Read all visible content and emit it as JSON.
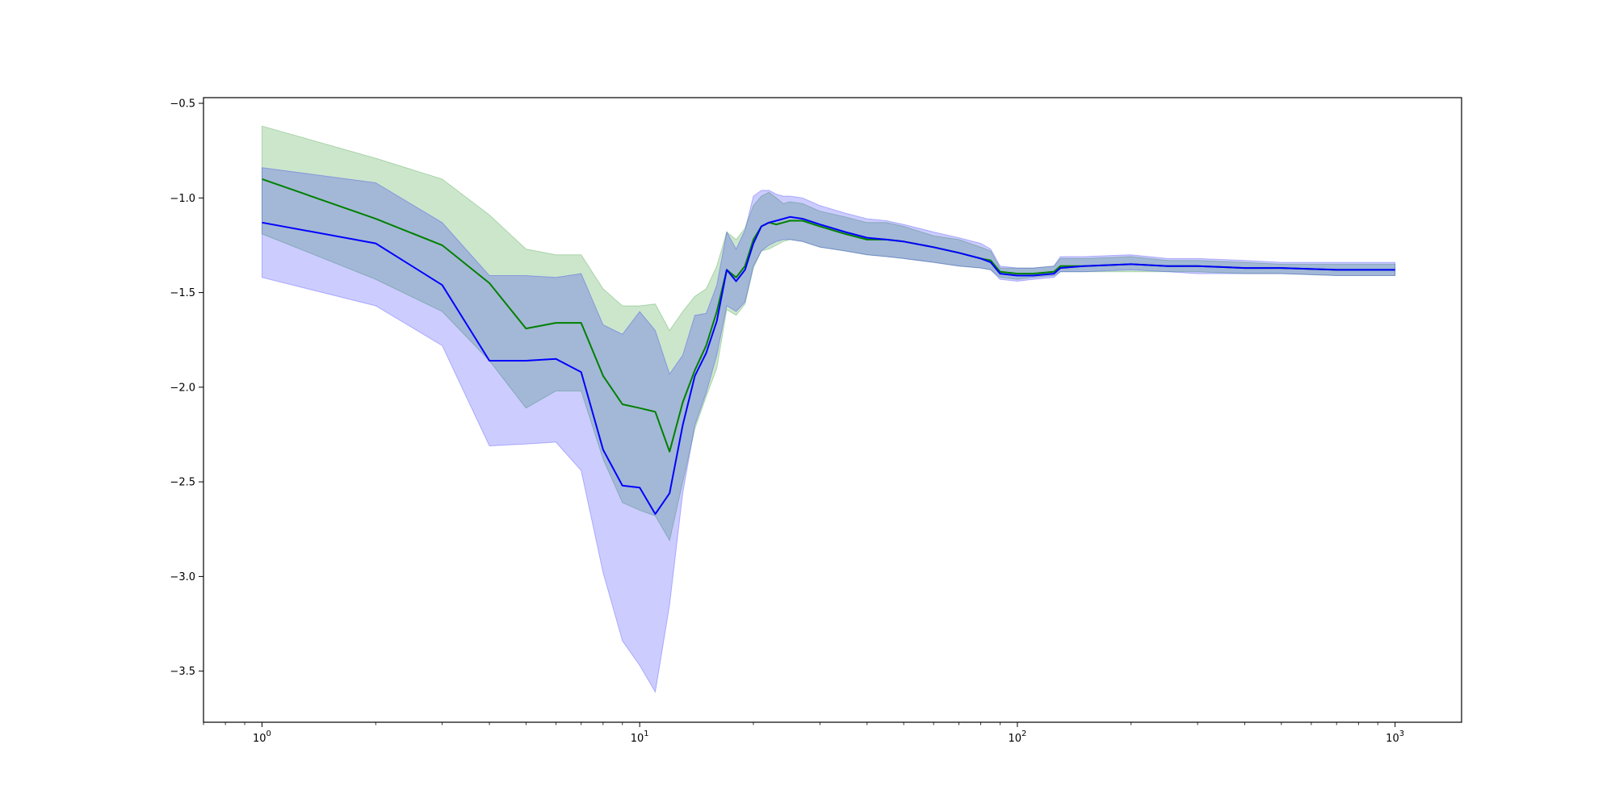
{
  "chart_data": {
    "type": "line",
    "title": "",
    "xlabel": "",
    "ylabel": "",
    "xscale": "log",
    "xlim": [
      0.7,
      1500
    ],
    "ylim": [
      -3.77,
      -0.47
    ],
    "grid": false,
    "legend": "none",
    "x_ticks": [
      {
        "value": 1,
        "base": "10",
        "exp": "0"
      },
      {
        "value": 10,
        "base": "10",
        "exp": "1"
      },
      {
        "value": 100,
        "base": "10",
        "exp": "2"
      },
      {
        "value": 1000,
        "base": "10",
        "exp": "3"
      }
    ],
    "y_ticks": [
      {
        "value": -0.5,
        "label": "−0.5"
      },
      {
        "value": -1.0,
        "label": "−1.0"
      },
      {
        "value": -1.5,
        "label": "−1.5"
      },
      {
        "value": -2.0,
        "label": "−2.0"
      },
      {
        "value": -2.5,
        "label": "−2.5"
      },
      {
        "value": -3.0,
        "label": "−3.0"
      },
      {
        "value": -3.5,
        "label": "−3.5"
      }
    ],
    "series": [
      {
        "color": "#008000",
        "band_color": "#008000",
        "x": [
          1,
          2,
          3,
          4,
          5,
          6,
          7,
          8,
          9,
          10,
          11,
          12,
          13,
          14,
          15,
          16,
          17,
          18,
          19,
          20,
          21,
          22,
          23,
          24,
          25,
          27,
          30,
          35,
          40,
          45,
          50,
          60,
          70,
          80,
          85,
          90,
          100,
          110,
          125,
          130,
          150,
          200,
          250,
          300,
          400,
          500,
          700,
          1000
        ],
        "y": [
          -0.9,
          -1.11,
          -1.25,
          -1.45,
          -1.69,
          -1.66,
          -1.66,
          -1.94,
          -2.09,
          -2.11,
          -2.13,
          -2.34,
          -2.08,
          -1.91,
          -1.78,
          -1.6,
          -1.38,
          -1.42,
          -1.36,
          -1.22,
          -1.15,
          -1.13,
          -1.14,
          -1.13,
          -1.12,
          -1.12,
          -1.15,
          -1.19,
          -1.22,
          -1.22,
          -1.23,
          -1.26,
          -1.29,
          -1.32,
          -1.33,
          -1.39,
          -1.4,
          -1.4,
          -1.39,
          -1.36,
          -1.36,
          -1.35,
          -1.36,
          -1.36,
          -1.37,
          -1.37,
          -1.38,
          -1.38
        ],
        "lower": [
          -1.19,
          -1.43,
          -1.6,
          -1.86,
          -2.11,
          -2.02,
          -2.02,
          -2.38,
          -2.61,
          -2.65,
          -2.68,
          -2.81,
          -2.5,
          -2.22,
          -2.05,
          -1.9,
          -1.59,
          -1.62,
          -1.56,
          -1.37,
          -1.28,
          -1.27,
          -1.25,
          -1.23,
          -1.22,
          -1.23,
          -1.26,
          -1.28,
          -1.3,
          -1.31,
          -1.32,
          -1.34,
          -1.36,
          -1.37,
          -1.38,
          -1.42,
          -1.43,
          -1.42,
          -1.41,
          -1.39,
          -1.39,
          -1.39,
          -1.39,
          -1.39,
          -1.4,
          -1.4,
          -1.41,
          -1.41
        ],
        "upper": [
          -0.62,
          -0.79,
          -0.9,
          -1.09,
          -1.27,
          -1.3,
          -1.3,
          -1.48,
          -1.57,
          -1.57,
          -1.56,
          -1.7,
          -1.6,
          -1.52,
          -1.48,
          -1.36,
          -1.18,
          -1.22,
          -1.16,
          -1.04,
          -0.99,
          -0.97,
          -1.0,
          -1.03,
          -1.02,
          -1.03,
          -1.07,
          -1.1,
          -1.13,
          -1.13,
          -1.15,
          -1.2,
          -1.22,
          -1.26,
          -1.28,
          -1.37,
          -1.37,
          -1.37,
          -1.36,
          -1.32,
          -1.32,
          -1.31,
          -1.33,
          -1.33,
          -1.34,
          -1.35,
          -1.35,
          -1.35
        ]
      },
      {
        "color": "#0000ff",
        "band_color": "#0000ff",
        "x": [
          1,
          2,
          3,
          4,
          5,
          6,
          7,
          8,
          9,
          10,
          11,
          12,
          13,
          14,
          15,
          16,
          17,
          18,
          19,
          20,
          21,
          22,
          23,
          24,
          25,
          27,
          30,
          35,
          40,
          45,
          50,
          60,
          70,
          80,
          85,
          90,
          100,
          110,
          125,
          130,
          150,
          200,
          250,
          300,
          400,
          500,
          700,
          1000
        ],
        "y": [
          -1.13,
          -1.24,
          -1.46,
          -1.86,
          -1.86,
          -1.85,
          -1.92,
          -2.33,
          -2.52,
          -2.53,
          -2.67,
          -2.56,
          -2.2,
          -1.94,
          -1.82,
          -1.65,
          -1.38,
          -1.44,
          -1.38,
          -1.24,
          -1.15,
          -1.13,
          -1.12,
          -1.11,
          -1.1,
          -1.11,
          -1.14,
          -1.18,
          -1.21,
          -1.22,
          -1.23,
          -1.26,
          -1.29,
          -1.32,
          -1.34,
          -1.4,
          -1.41,
          -1.41,
          -1.4,
          -1.37,
          -1.36,
          -1.35,
          -1.36,
          -1.36,
          -1.37,
          -1.37,
          -1.38,
          -1.38
        ],
        "lower": [
          -1.42,
          -1.57,
          -1.78,
          -2.31,
          -2.3,
          -2.29,
          -2.44,
          -2.98,
          -3.34,
          -3.47,
          -3.61,
          -3.15,
          -2.56,
          -2.2,
          -2.03,
          -1.83,
          -1.57,
          -1.6,
          -1.55,
          -1.36,
          -1.28,
          -1.25,
          -1.23,
          -1.22,
          -1.22,
          -1.23,
          -1.26,
          -1.28,
          -1.3,
          -1.31,
          -1.32,
          -1.34,
          -1.36,
          -1.37,
          -1.38,
          -1.43,
          -1.44,
          -1.43,
          -1.42,
          -1.39,
          -1.39,
          -1.38,
          -1.39,
          -1.4,
          -1.4,
          -1.4,
          -1.41,
          -1.41
        ],
        "upper": [
          -0.84,
          -0.92,
          -1.13,
          -1.41,
          -1.41,
          -1.42,
          -1.4,
          -1.67,
          -1.72,
          -1.6,
          -1.7,
          -1.93,
          -1.83,
          -1.62,
          -1.61,
          -1.46,
          -1.18,
          -1.27,
          -1.17,
          -0.99,
          -0.96,
          -0.96,
          -0.98,
          -0.99,
          -0.99,
          -1.0,
          -1.04,
          -1.08,
          -1.11,
          -1.12,
          -1.14,
          -1.18,
          -1.21,
          -1.24,
          -1.27,
          -1.36,
          -1.37,
          -1.37,
          -1.36,
          -1.31,
          -1.31,
          -1.3,
          -1.32,
          -1.32,
          -1.33,
          -1.34,
          -1.34,
          -1.34
        ]
      }
    ]
  }
}
